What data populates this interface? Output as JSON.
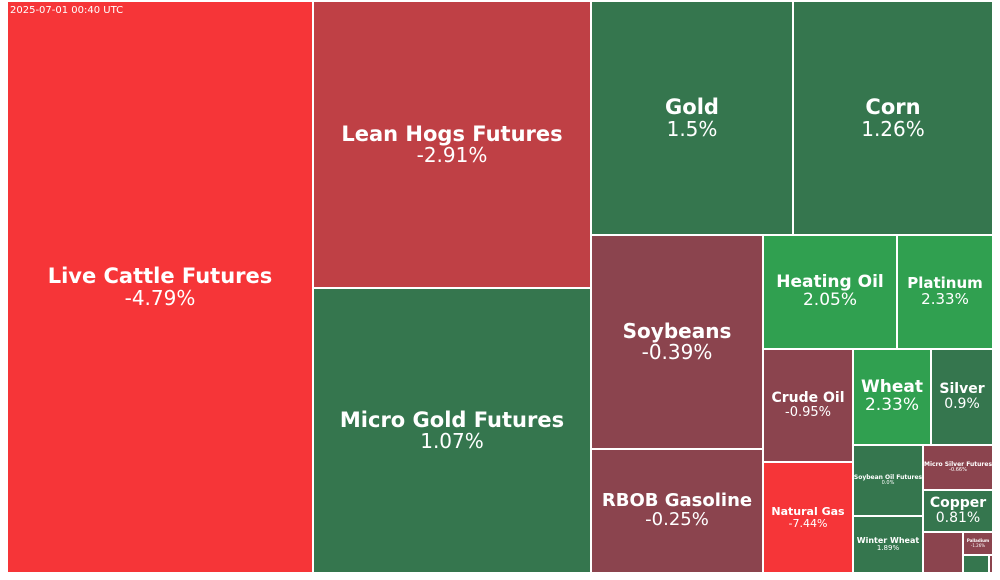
{
  "timestamp": "2025-07-01 00:40 UTC",
  "colors": {
    "strong_up": "#30a050",
    "up": "#35764e",
    "down": "#8b444e",
    "mid_down": "#bf4045",
    "strong_down": "#f63538",
    "border": "#ffffff"
  },
  "chart_data": {
    "type": "treemap",
    "items": [
      {
        "name": "Live Cattle Futures",
        "label": "-4.79%",
        "change": -4.79
      },
      {
        "name": "Lean Hogs Futures",
        "label": "-2.91%",
        "change": -2.91
      },
      {
        "name": "Micro Gold Futures",
        "label": "1.07%",
        "change": 1.07
      },
      {
        "name": "Gold",
        "label": "1.5%",
        "change": 1.5
      },
      {
        "name": "Corn",
        "label": "1.26%",
        "change": 1.26
      },
      {
        "name": "Soybeans",
        "label": "-0.39%",
        "change": -0.39
      },
      {
        "name": "RBOB Gasoline",
        "label": "-0.25%",
        "change": -0.25
      },
      {
        "name": "Heating Oil",
        "label": "2.05%",
        "change": 2.05
      },
      {
        "name": "Platinum",
        "label": "2.33%",
        "change": 2.33
      },
      {
        "name": "Crude Oil",
        "label": "-0.95%",
        "change": -0.95
      },
      {
        "name": "Wheat",
        "label": "2.33%",
        "change": 2.33
      },
      {
        "name": "Silver",
        "label": "0.9%",
        "change": 0.9
      },
      {
        "name": "Natural Gas",
        "label": "-7.44%",
        "change": -7.44
      },
      {
        "name": "Soybean Oil Futures",
        "label": "0.0%",
        "change": 0.0
      },
      {
        "name": "Micro Silver Futures",
        "label": "-0.66%",
        "change": -0.66
      },
      {
        "name": "Copper",
        "label": "0.81%",
        "change": 0.81
      },
      {
        "name": "Winter Wheat",
        "label": "1.89%",
        "change": 1.89
      },
      {
        "name": "Palladium",
        "label": "-1.26%",
        "change": -1.26
      }
    ]
  }
}
